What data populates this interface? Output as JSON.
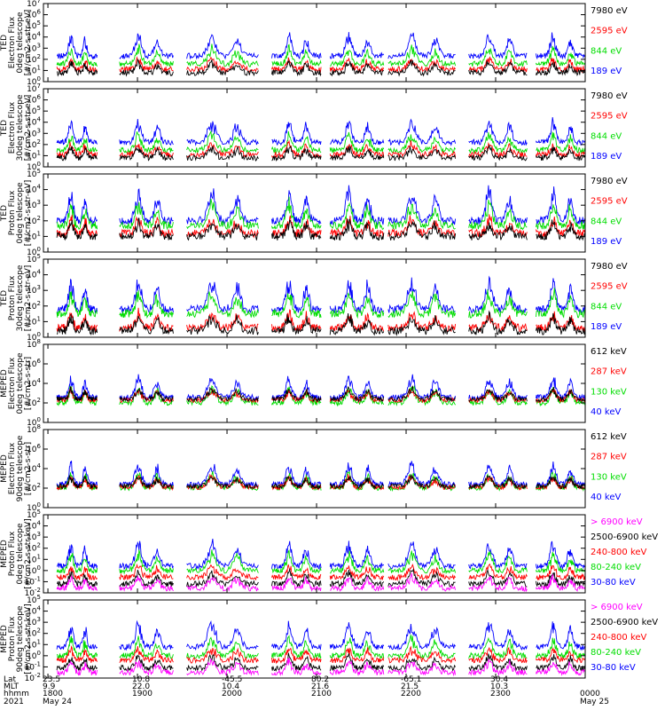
{
  "chart_data": {
    "type": "line",
    "time_axis": {
      "tick_labels": [
        "1800",
        "1900",
        "2000",
        "2100",
        "2200",
        "2300",
        "0000"
      ],
      "tick_hours": [
        18,
        19,
        20,
        21,
        22,
        23,
        24
      ],
      "range_hours": [
        17.95,
        24.0
      ],
      "row_labels": [
        "Lat",
        "MLT",
        "hhmm",
        "2021"
      ],
      "lat_values": [
        "23.5",
        "10.8",
        "-45.5",
        "80.2",
        "-65.1",
        "30.4",
        ""
      ],
      "mlt_values": [
        "9.9",
        "22.0",
        "10.4",
        "21.6",
        "21.5",
        "10.3",
        ""
      ],
      "date_labels": [
        "May 24",
        "May 25"
      ]
    },
    "panels": [
      {
        "ylabel": [
          "TED",
          "Electron Flux",
          "0deg telescope",
          "[#/cm2-s-str-eV]"
        ],
        "ylim_exp": [
          0,
          7
        ],
        "tick_exponents": [
          0,
          1,
          2,
          3,
          4,
          5,
          6,
          7
        ],
        "log_scale": true,
        "legend": [
          {
            "label": "7980 eV",
            "color": "#000000"
          },
          {
            "label": "2595 eV",
            "color": "#ff0000"
          },
          {
            "label": "844 eV",
            "color": "#00dd00"
          },
          {
            "label": "189 eV",
            "color": "#0000ff"
          }
        ],
        "series": [
          {
            "color": "#0000ff",
            "base": 2.3
          },
          {
            "color": "#00dd00",
            "base": 1.6
          },
          {
            "color": "#ff0000",
            "base": 1.1
          },
          {
            "color": "#000000",
            "base": 0.8
          }
        ]
      },
      {
        "ylabel": [
          "TED",
          "Electron Flux",
          "30deg telescope",
          "[#/cm2-s-str-eV]"
        ],
        "ylim_exp": [
          0,
          7
        ],
        "tick_exponents": [
          0,
          1,
          2,
          3,
          4,
          5,
          6,
          7
        ],
        "log_scale": true,
        "legend": [
          {
            "label": "7980 eV",
            "color": "#000000"
          },
          {
            "label": "2595 eV",
            "color": "#ff0000"
          },
          {
            "label": "844 eV",
            "color": "#00dd00"
          },
          {
            "label": "189 eV",
            "color": "#0000ff"
          }
        ],
        "series": [
          {
            "color": "#0000ff",
            "base": 2.2
          },
          {
            "color": "#00dd00",
            "base": 1.5
          },
          {
            "color": "#ff0000",
            "base": 1.1
          },
          {
            "color": "#000000",
            "base": 0.8
          }
        ]
      },
      {
        "ylabel": [
          "TED",
          "Proton Flux",
          "0deg telescope",
          "[#/cm2-s-str-eV]"
        ],
        "ylim_exp": [
          0,
          5
        ],
        "tick_exponents": [
          0,
          1,
          2,
          3,
          4,
          5
        ],
        "log_scale": true,
        "legend": [
          {
            "label": "7980 eV",
            "color": "#000000"
          },
          {
            "label": "2595 eV",
            "color": "#ff0000"
          },
          {
            "label": "844 eV",
            "color": "#00dd00"
          },
          {
            "label": "189 eV",
            "color": "#0000ff"
          }
        ],
        "series": [
          {
            "color": "#0000ff",
            "base": 2.0
          },
          {
            "color": "#00dd00",
            "base": 1.7
          },
          {
            "color": "#ff0000",
            "base": 1.2
          },
          {
            "color": "#000000",
            "base": 1.0
          }
        ]
      },
      {
        "ylabel": [
          "TED",
          "Proton Flux",
          "30deg telescope",
          "[#/cm2-s-str-eV]"
        ],
        "ylim_exp": [
          0,
          5
        ],
        "tick_exponents": [
          0,
          1,
          2,
          3,
          4,
          5
        ],
        "log_scale": true,
        "legend": [
          {
            "label": "7980 eV",
            "color": "#000000"
          },
          {
            "label": "2595 eV",
            "color": "#ff0000"
          },
          {
            "label": "844 eV",
            "color": "#00dd00"
          },
          {
            "label": "189 eV",
            "color": "#0000ff"
          }
        ],
        "series": [
          {
            "color": "#0000ff",
            "base": 1.8
          },
          {
            "color": "#00dd00",
            "base": 1.5
          },
          {
            "color": "#ff0000",
            "base": 0.6
          },
          {
            "color": "#000000",
            "base": 0.4
          }
        ]
      },
      {
        "ylabel": [
          "MEPED",
          "Electron Flux",
          "0deg telescope",
          "[#/cm2-s-str]"
        ],
        "ylim_exp": [
          0,
          8
        ],
        "tick_exponents": [
          0,
          2,
          4,
          6,
          8
        ],
        "log_scale": true,
        "legend": [
          {
            "label": "612 keV",
            "color": "#000000"
          },
          {
            "label": "287 keV",
            "color": "#ff0000"
          },
          {
            "label": "130 keV",
            "color": "#00dd00"
          },
          {
            "label": "40 keV",
            "color": "#0000ff"
          }
        ],
        "series": [
          {
            "color": "#0000ff",
            "base": 2.6
          },
          {
            "color": "#00dd00",
            "base": 2.0
          },
          {
            "color": "#ff0000",
            "base": 2.3
          },
          {
            "color": "#000000",
            "base": 2.4
          }
        ]
      },
      {
        "ylabel": [
          "MEPED",
          "Electron Flux",
          "90deg telescope",
          "[#/cm2-s-str]"
        ],
        "ylim_exp": [
          0,
          8
        ],
        "tick_exponents": [
          0,
          2,
          4,
          6,
          8
        ],
        "log_scale": true,
        "legend": [
          {
            "label": "612 keV",
            "color": "#000000"
          },
          {
            "label": "287 keV",
            "color": "#ff0000"
          },
          {
            "label": "130 keV",
            "color": "#00dd00"
          },
          {
            "label": "40 keV",
            "color": "#0000ff"
          }
        ],
        "series": [
          {
            "color": "#0000ff",
            "base": 2.4
          },
          {
            "color": "#00dd00",
            "base": 2.0
          },
          {
            "color": "#ff0000",
            "base": 2.1
          },
          {
            "color": "#000000",
            "base": 2.2
          }
        ]
      },
      {
        "ylabel": [
          "MEPED",
          "Proton Flux",
          "0deg telescope",
          "[#/cm2-s-str-keV]"
        ],
        "ylim_exp": [
          -2,
          5
        ],
        "tick_exponents": [
          -2,
          -1,
          0,
          1,
          2,
          3,
          4,
          5
        ],
        "log_scale": true,
        "legend": [
          {
            "label": "> 6900 keV",
            "color": "#ff00ff"
          },
          {
            "label": "2500-6900 keV",
            "color": "#000000"
          },
          {
            "label": "240-800 keV",
            "color": "#ff0000"
          },
          {
            "label": "80-240 keV",
            "color": "#00dd00"
          },
          {
            "label": "30-80 keV",
            "color": "#0000ff"
          }
        ],
        "series": [
          {
            "color": "#0000ff",
            "base": 0.4
          },
          {
            "color": "#00dd00",
            "base": 0.0
          },
          {
            "color": "#ff0000",
            "base": -0.6
          },
          {
            "color": "#000000",
            "base": -1.2
          },
          {
            "color": "#ff00ff",
            "base": -1.6
          }
        ]
      },
      {
        "ylabel": [
          "MEPED",
          "Proton Flux",
          "90deg telescope",
          "[#/cm2-s-str-keV]"
        ],
        "ylim_exp": [
          -2,
          5
        ],
        "tick_exponents": [
          -2,
          -1,
          0,
          1,
          2,
          3,
          4,
          5
        ],
        "log_scale": true,
        "legend": [
          {
            "label": "> 6900 keV",
            "color": "#ff00ff"
          },
          {
            "label": "2500-6900 keV",
            "color": "#000000"
          },
          {
            "label": "240-800 keV",
            "color": "#ff0000"
          },
          {
            "label": "80-240 keV",
            "color": "#00dd00"
          },
          {
            "label": "30-80 keV",
            "color": "#0000ff"
          }
        ],
        "series": [
          {
            "color": "#0000ff",
            "base": 0.8
          },
          {
            "color": "#00dd00",
            "base": 0.0
          },
          {
            "color": "#ff0000",
            "base": -0.4
          },
          {
            "color": "#000000",
            "base": -1.1
          },
          {
            "color": "#ff00ff",
            "base": -1.5
          }
        ]
      }
    ],
    "passes": [
      {
        "start": 18.1,
        "end": 18.55
      },
      {
        "start": 18.8,
        "end": 19.4
      },
      {
        "start": 19.55,
        "end": 20.35
      },
      {
        "start": 20.5,
        "end": 21.05
      },
      {
        "start": 21.15,
        "end": 21.75
      },
      {
        "start": 21.8,
        "end": 22.55
      },
      {
        "start": 22.7,
        "end": 23.35
      },
      {
        "start": 23.45,
        "end": 24.0
      }
    ]
  }
}
